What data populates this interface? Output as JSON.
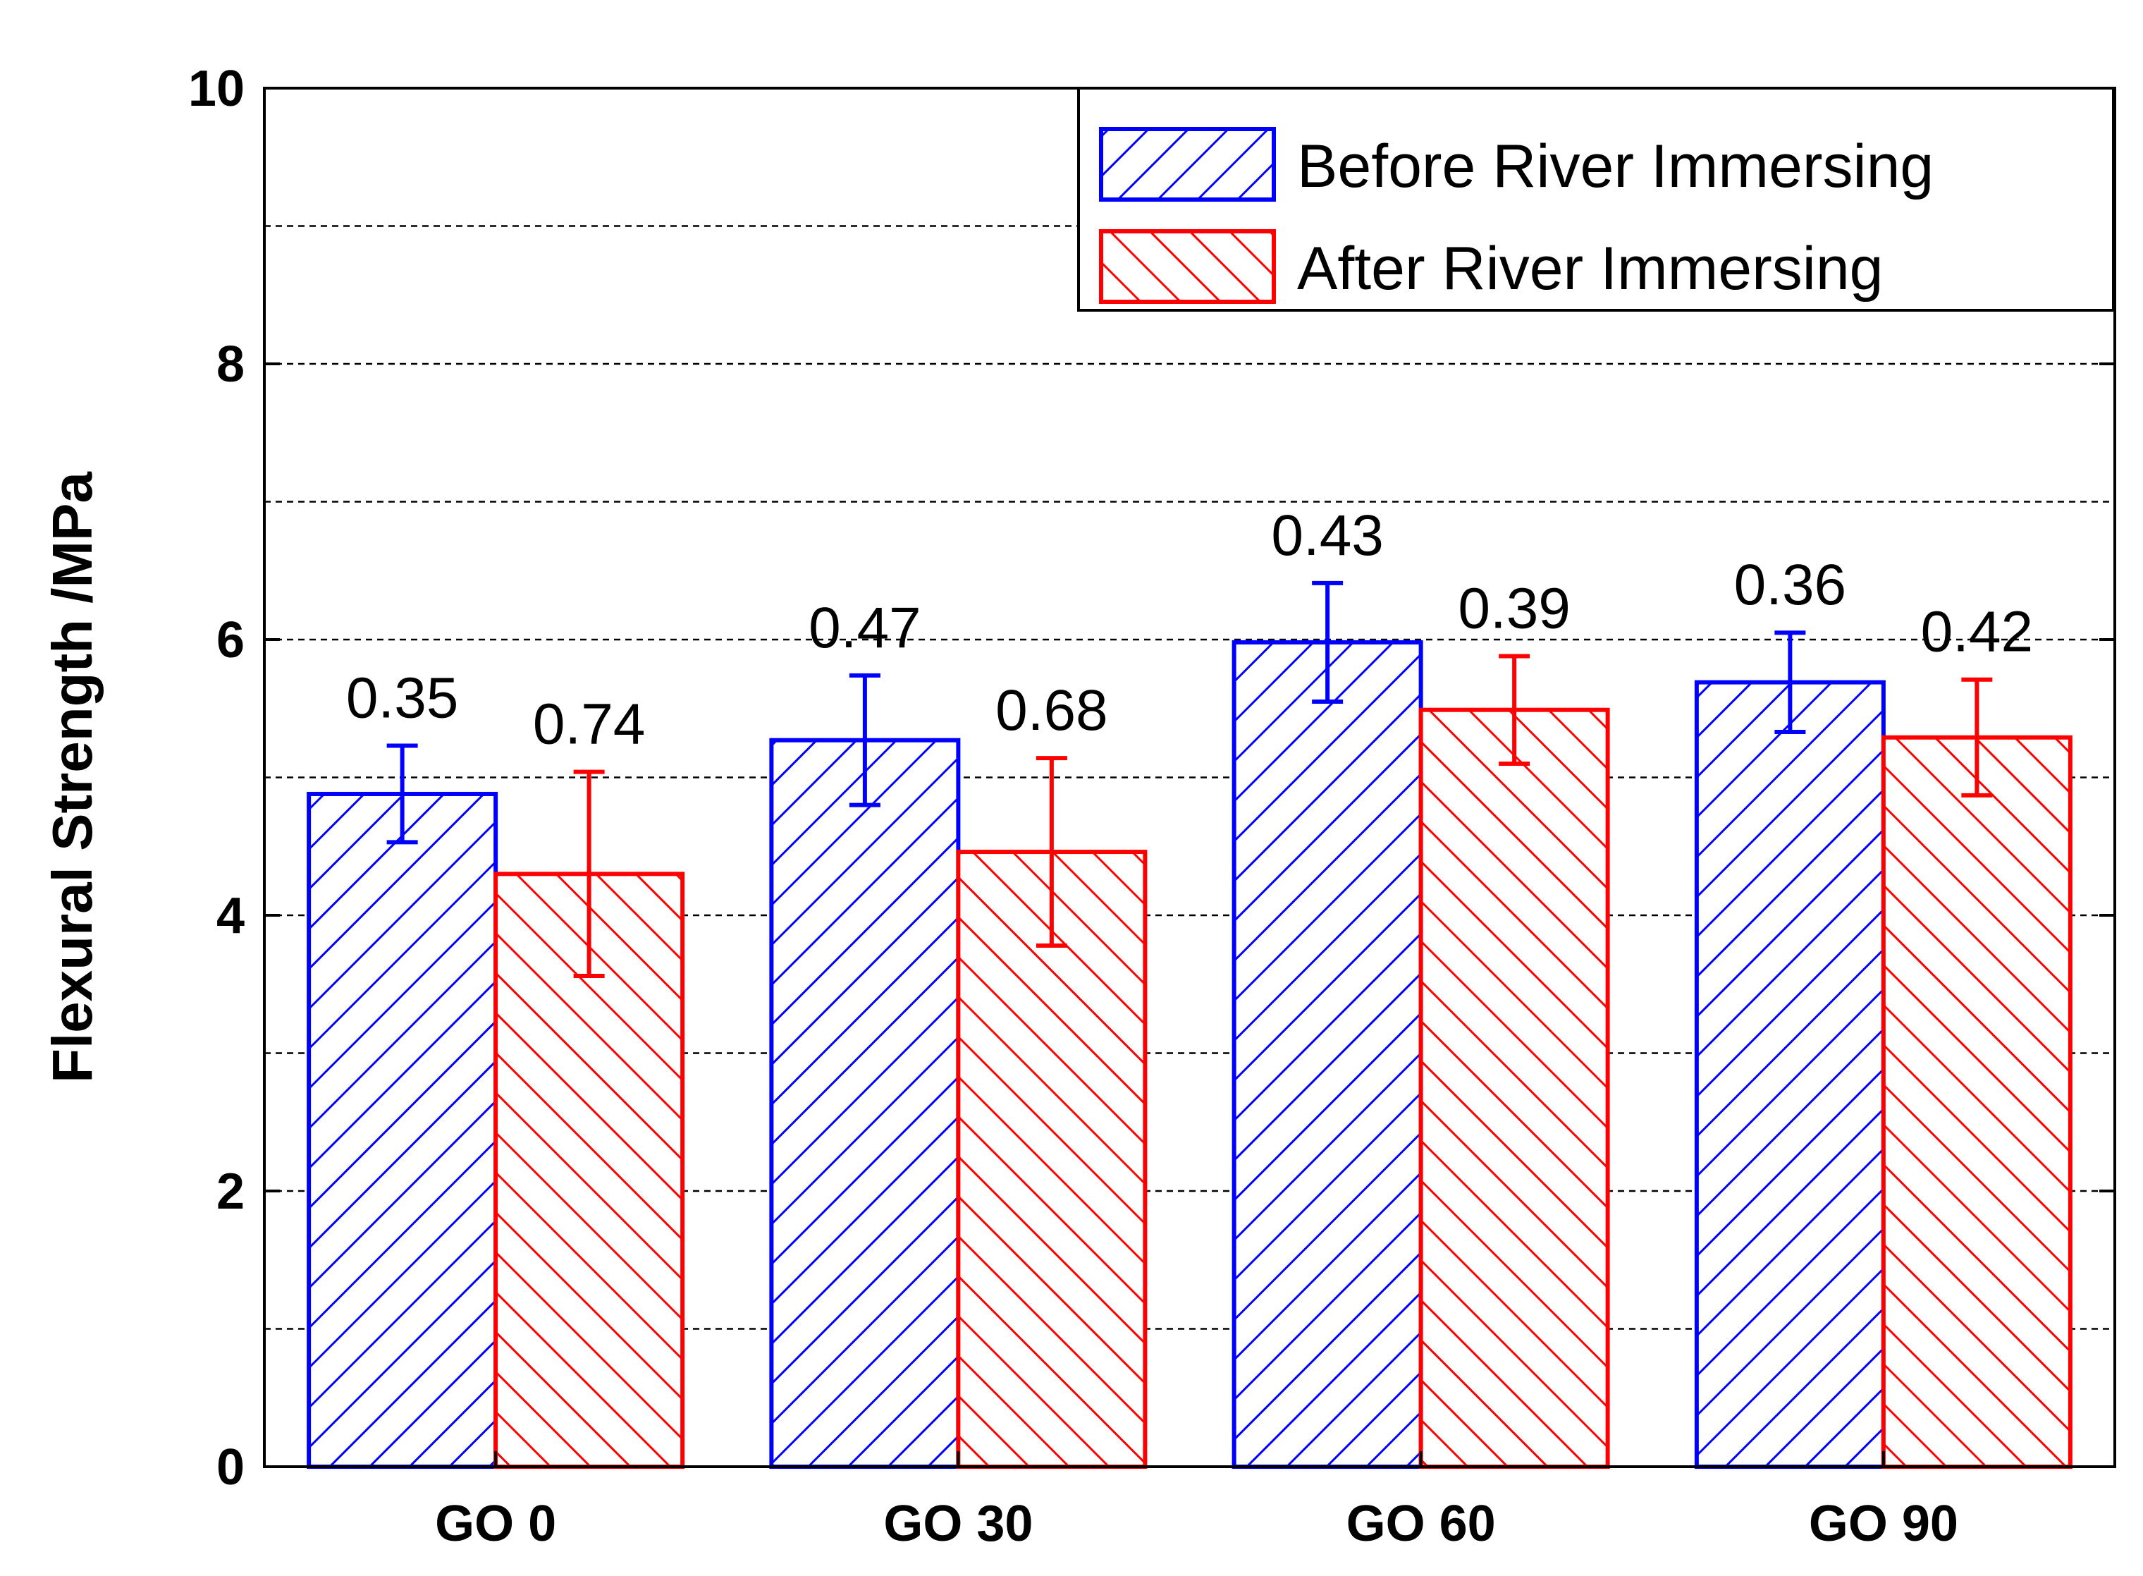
{
  "chart_data": {
    "type": "bar",
    "title": "",
    "xlabel": "",
    "ylabel": "Flexural Strength /MPa",
    "ylim": [
      0,
      10
    ],
    "yticks": [
      0,
      2,
      4,
      6,
      8,
      10
    ],
    "grid": {
      "dashed_every": 1
    },
    "categories": [
      "GO 0",
      "GO 30",
      "GO 60",
      "GO 90"
    ],
    "series": [
      {
        "name": "Before River Immersing",
        "color": "#0000ff",
        "hatch": "forward-diagonal",
        "values": [
          4.88,
          5.27,
          5.98,
          5.69
        ],
        "errors": [
          0.35,
          0.47,
          0.43,
          0.36
        ],
        "labels": [
          "0.35",
          "0.47",
          "0.43",
          "0.36"
        ]
      },
      {
        "name": "After   River Immersing",
        "color": "#ff0000",
        "hatch": "back-diagonal",
        "values": [
          4.3,
          4.46,
          5.49,
          5.29
        ],
        "errors": [
          0.74,
          0.68,
          0.39,
          0.42
        ],
        "labels": [
          "0.74",
          "0.68",
          "0.39",
          "0.42"
        ]
      }
    ],
    "legend": {
      "position": "top-right"
    }
  }
}
